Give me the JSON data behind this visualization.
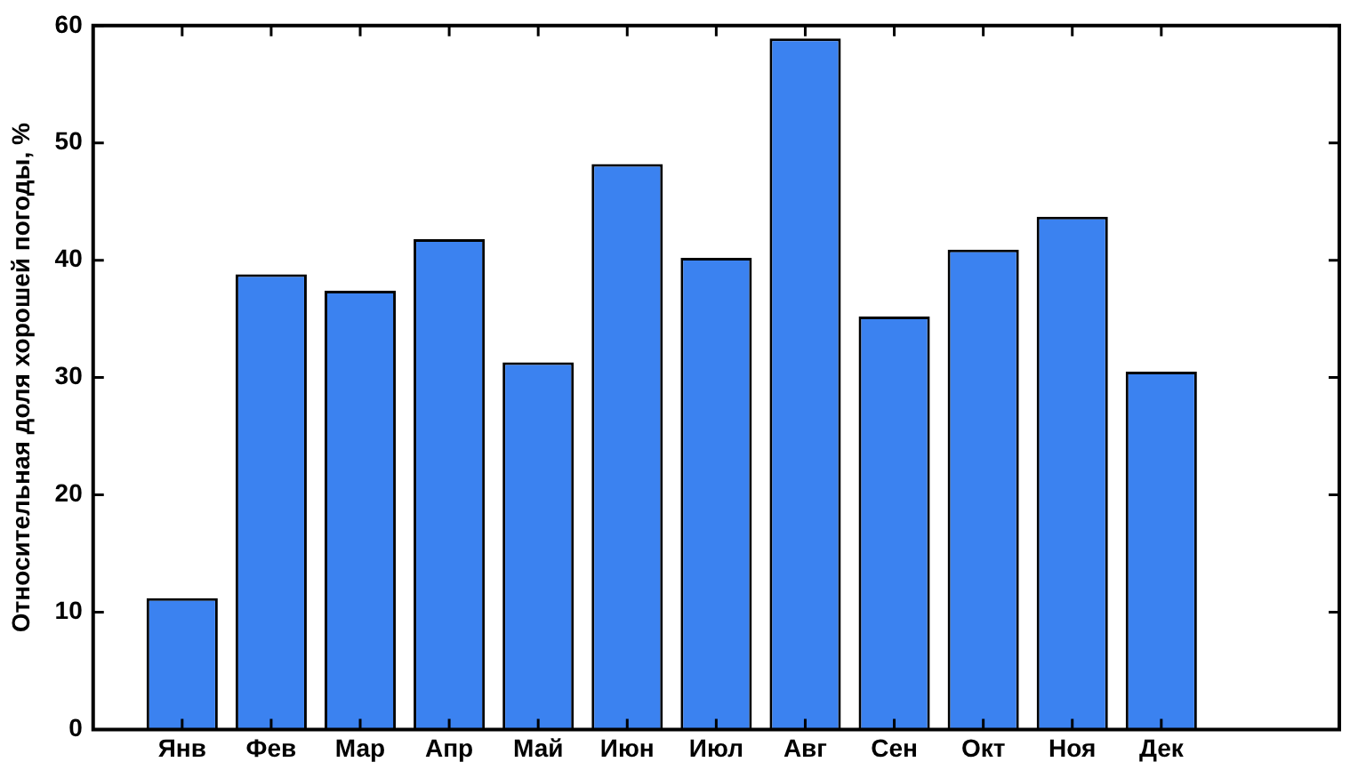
{
  "chart_data": {
    "type": "bar",
    "ylabel": "Относительная доля хорошей погоды, %",
    "categories": [
      "Янв",
      "Фев",
      "Мар",
      "Апр",
      "Май",
      "Июн",
      "Июл",
      "Авг",
      "Сен",
      "Окт",
      "Ноя",
      "Дек"
    ],
    "values": [
      11.2,
      38.8,
      37.4,
      41.8,
      31.3,
      48.2,
      40.2,
      58.9,
      35.2,
      40.9,
      43.7,
      30.5
    ],
    "color": "#3b82f0",
    "ylim": [
      0,
      60
    ],
    "yticks": [
      0,
      10,
      20,
      30,
      40,
      50,
      60
    ],
    "grid": false,
    "legend": false
  }
}
